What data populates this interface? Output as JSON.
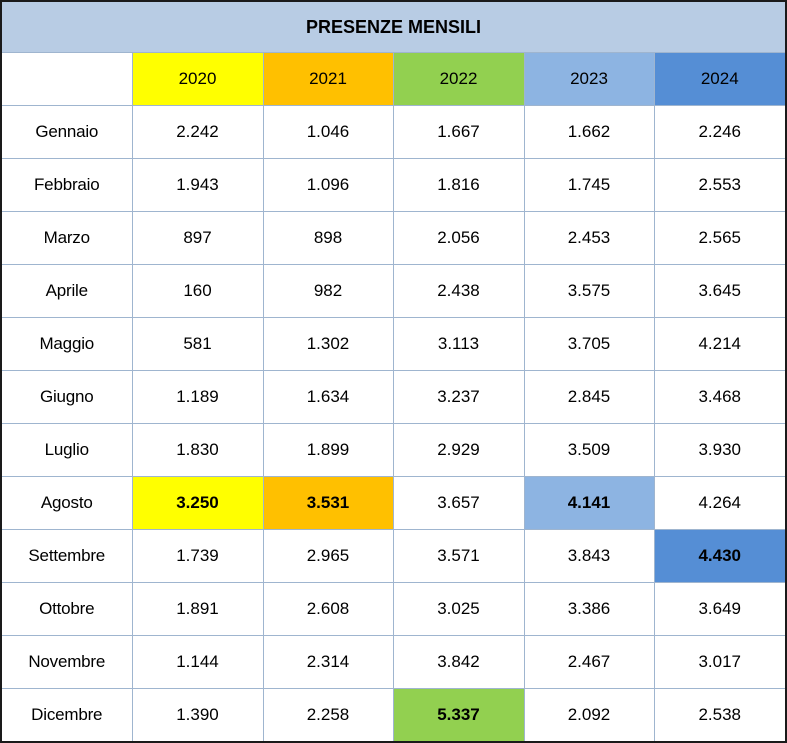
{
  "title": "PRESENZE MENSILI",
  "colors": {
    "header_bg": "#b8cce4",
    "year_2020": "#ffff00",
    "year_2021": "#ffc000",
    "year_2022": "#92d050",
    "year_2023": "#8db4e2",
    "year_2024": "#558ed5",
    "border": "#9fb5cf"
  },
  "years": [
    "2020",
    "2021",
    "2022",
    "2023",
    "2024"
  ],
  "rows": [
    {
      "month": "Gennaio",
      "values": [
        "2.242",
        "1.046",
        "1.667",
        "1.662",
        "2.246"
      ]
    },
    {
      "month": "Febbraio",
      "values": [
        "1.943",
        "1.096",
        "1.816",
        "1.745",
        "2.553"
      ]
    },
    {
      "month": "Marzo",
      "values": [
        "897",
        "898",
        "2.056",
        "2.453",
        "2.565"
      ]
    },
    {
      "month": "Aprile",
      "values": [
        "160",
        "982",
        "2.438",
        "3.575",
        "3.645"
      ]
    },
    {
      "month": "Maggio",
      "values": [
        "581",
        "1.302",
        "3.113",
        "3.705",
        "4.214"
      ]
    },
    {
      "month": "Giugno",
      "values": [
        "1.189",
        "1.634",
        "3.237",
        "2.845",
        "3.468"
      ]
    },
    {
      "month": "Luglio",
      "values": [
        "1.830",
        "1.899",
        "2.929",
        "3.509",
        "3.930"
      ]
    },
    {
      "month": "Agosto",
      "values": [
        "3.250",
        "3.531",
        "3.657",
        "4.141",
        "4.264"
      ]
    },
    {
      "month": "Settembre",
      "values": [
        "1.739",
        "2.965",
        "3.571",
        "3.843",
        "4.430"
      ]
    },
    {
      "month": "Ottobre",
      "values": [
        "1.891",
        "2.608",
        "3.025",
        "3.386",
        "3.649"
      ]
    },
    {
      "month": "Novembre",
      "values": [
        "1.144",
        "2.314",
        "3.842",
        "2.467",
        "3.017"
      ]
    },
    {
      "month": "Dicembre",
      "values": [
        "1.390",
        "2.258",
        "5.337",
        "2.092",
        "2.538"
      ]
    }
  ],
  "highlights": [
    {
      "month": "Agosto",
      "year": "2020"
    },
    {
      "month": "Agosto",
      "year": "2021"
    },
    {
      "month": "Agosto",
      "year": "2023"
    },
    {
      "month": "Settembre",
      "year": "2024"
    },
    {
      "month": "Dicembre",
      "year": "2022"
    }
  ]
}
